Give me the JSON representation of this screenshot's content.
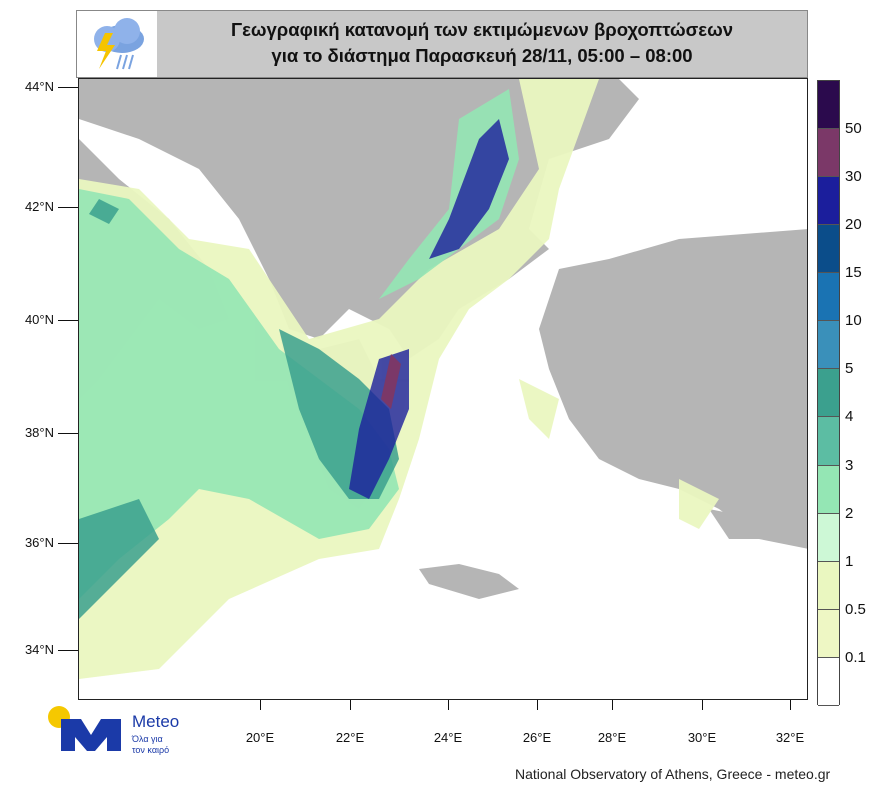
{
  "header": {
    "title_line1": "Γεωγραφική κατανομή των εκτιμώμενων βροχοπτώσεων",
    "title_line2": "για το διάστημα  Παρασκευή 28/11, 05:00 – 08:00",
    "icon": "thunderstorm-rain-icon"
  },
  "map": {
    "lat_labels": [
      "44°N",
      "42°N",
      "40°N",
      "38°N",
      "36°N",
      "34°N"
    ],
    "lon_labels": [
      "20°E",
      "22°E",
      "24°E",
      "26°E",
      "28°E",
      "30°E",
      "32°E"
    ],
    "land_color": "#b5b5b5",
    "sea_color": "#ffffff"
  },
  "colorbar": {
    "labels": [
      "50",
      "30",
      "20",
      "15",
      "10",
      "5",
      "4",
      "3",
      "2",
      "1",
      "0.5",
      "0.1"
    ],
    "colors": [
      "#2b0a4d",
      "#7b3868",
      "#1b1e9c",
      "#0b4d8a",
      "#1a73b3",
      "#3a90ba",
      "#3ba08e",
      "#5cbda3",
      "#94e6b4",
      "#cdf8d6",
      "#eaf7c0",
      "#eef7c4",
      "#ffffff"
    ]
  },
  "logo": {
    "name": "Meteo",
    "tagline_line1": "Όλα για",
    "tagline_line2": "τον καιρό",
    "sun_color": "#f5c800",
    "brand_color": "#1b3aa8"
  },
  "footer": {
    "credit": "National Observatory of Athens, Greece - meteo.gr"
  }
}
